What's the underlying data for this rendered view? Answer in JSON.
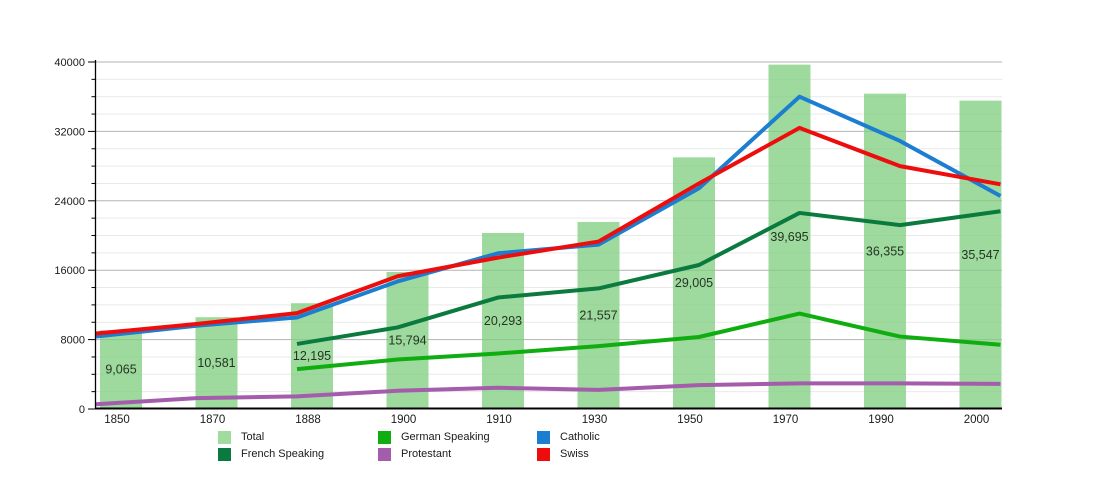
{
  "chart_data": {
    "type": "bar",
    "subtype": "bar-line-combo",
    "title": "",
    "xlabel": "",
    "ylabel": "",
    "categories": [
      "1850",
      "1870",
      "1888",
      "1900",
      "1910",
      "1930",
      "1950",
      "1970",
      "1990",
      "2000"
    ],
    "y_axis": {
      "min": 0,
      "max": 40000,
      "major_step": 8000,
      "minor_step": 2000,
      "tick_labels": [
        "0",
        "8000",
        "16000",
        "24000",
        "32000",
        "40000"
      ]
    },
    "bars": {
      "name": "Total",
      "color": "rgba(125,205,125,0.75)",
      "legend_color": "#a0dba0",
      "values": [
        9065,
        10581,
        12195,
        15794,
        20293,
        21557,
        29005,
        39695,
        36355,
        35547
      ],
      "value_labels": [
        "9,065",
        "10,581",
        "12,195",
        "15,794",
        "20,293",
        "21,557",
        "29,005",
        "39,695",
        "36,355",
        "35,547"
      ]
    },
    "lines": [
      {
        "name": "Protestant",
        "color": "#a35dab",
        "values": [
          550,
          1250,
          1450,
          2100,
          2450,
          2200,
          2750,
          2950,
          2950,
          2900
        ]
      },
      {
        "name": "German Speaking",
        "color": "#10ad10",
        "values": [
          null,
          null,
          4600,
          5700,
          6400,
          7250,
          8300,
          11000,
          8350,
          7400
        ]
      },
      {
        "name": "French Speaking",
        "color": "#0b7a3e",
        "values": [
          null,
          null,
          7500,
          9400,
          12850,
          13900,
          16600,
          22600,
          21200,
          22800
        ]
      },
      {
        "name": "Catholic",
        "color": "#1b7ed1",
        "values": [
          8350,
          9600,
          10550,
          14700,
          17950,
          18950,
          25450,
          36000,
          30900,
          24550
        ]
      },
      {
        "name": "Swiss",
        "color": "#ee0d0d",
        "values": [
          8700,
          9800,
          11050,
          15300,
          17450,
          19300,
          26000,
          32400,
          28000,
          25900
        ]
      }
    ],
    "legend": {
      "position": "bottom",
      "items": [
        {
          "label": "Total",
          "color": "#a0dba0"
        },
        {
          "label": "German Speaking",
          "color": "#10ad10"
        },
        {
          "label": "Catholic",
          "color": "#1b7ed1"
        },
        {
          "label": "French Speaking",
          "color": "#0b7a3e"
        },
        {
          "label": "Protestant",
          "color": "#a35dab"
        },
        {
          "label": "Swiss",
          "color": "#ee0d0d"
        }
      ]
    },
    "grid": "on",
    "style": {
      "major_grid_color": "#b3b3b3",
      "minor_grid_color": "#e9e9e9",
      "axis_color": "#000000",
      "tick_label_color": "#1a1a1a",
      "bar_value_label_color": "#243524"
    }
  }
}
